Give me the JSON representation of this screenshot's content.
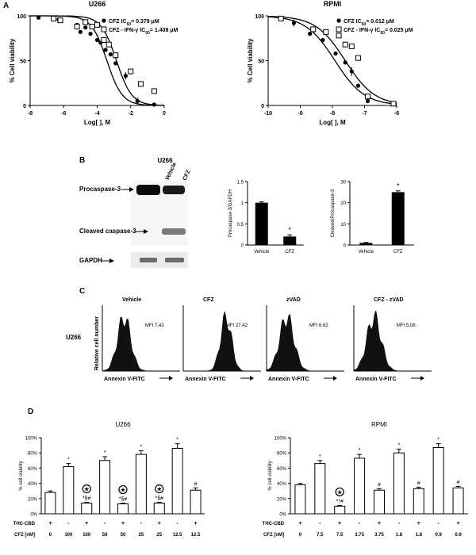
{
  "panels": {
    "a": "A",
    "b": "B",
    "c": "C",
    "d": "D"
  },
  "chart_data": [
    {
      "id": "a-u266",
      "type": "scatter",
      "title": "U266",
      "xlabel": "Log[ ], M",
      "ylabel": "% Cell viability",
      "xlim": [
        -8,
        0
      ],
      "ylim": [
        0,
        100
      ],
      "xticks": [
        "-8",
        "-6",
        "-4",
        "-2",
        "0"
      ],
      "yticks": [
        "0",
        "50",
        "100"
      ],
      "legend": [
        {
          "label": "CFZ IC50= 0.379 μM",
          "text": "CFZ IC",
          "sub": "50",
          "rest": "= 0.379 μM",
          "marker": "filled-circle"
        },
        {
          "label": "CFZ - IFN-γ IC50= 1.408 μM",
          "text": "CFZ - IFN-γ IC",
          "sub": "50",
          "rest": "= 1.408 μM",
          "marker": "open-square"
        }
      ],
      "series": [
        {
          "name": "CFZ",
          "marker": "filled-circle",
          "ic50_log": -3.42,
          "x": [
            -7.5,
            -6.3,
            -5.2,
            -5.0,
            -4.7,
            -4.4,
            -4.0,
            -3.8,
            -3.5,
            -3.2,
            -2.9,
            -2.3,
            -1.6,
            -0.6
          ],
          "y": [
            98,
            96,
            90,
            82,
            87,
            80,
            73,
            70,
            62,
            57,
            47,
            33,
            5,
            1
          ],
          "err": [
            0,
            0,
            0,
            0,
            0,
            0,
            0,
            0,
            0,
            0,
            0,
            4,
            4,
            0
          ]
        },
        {
          "name": "CFZ - IFN-γ",
          "marker": "open-square",
          "ic50_log": -2.85,
          "x": [
            -6.6,
            -6.2,
            -5.2,
            -4.7,
            -4.3,
            -4.0,
            -3.6,
            -3.3,
            -2.9,
            -2.0,
            -1.4,
            -0.6
          ],
          "y": [
            97,
            95,
            88,
            93,
            88,
            90,
            73,
            68,
            56,
            38,
            24,
            16
          ],
          "err": [
            0,
            0,
            0,
            0,
            0,
            0,
            0,
            0,
            0,
            0,
            0,
            0
          ]
        }
      ]
    },
    {
      "id": "a-rpmi",
      "type": "scatter",
      "title": "RPMI",
      "xlabel": "Log[ ], M",
      "ylabel": "% Cell viability",
      "xlim": [
        -10,
        -6
      ],
      "ylim": [
        0,
        100
      ],
      "xticks": [
        "-10",
        "-9",
        "-8",
        "-7",
        "-6"
      ],
      "yticks": [
        "0",
        "50",
        "100"
      ],
      "legend": [
        {
          "label": "CFZ IC50= 0.012 μM",
          "text": "CFZ IC",
          "sub": "50",
          "rest": "= 0.012 μM",
          "marker": "filled-circle"
        },
        {
          "label": "CFZ - IFN-γ IC50= 0.025 μM",
          "text": "CFZ - IFN-γ IC",
          "sub": "50",
          "rest": "= 0.025 μM",
          "marker": "open-square"
        }
      ],
      "series": [
        {
          "name": "CFZ",
          "marker": "filled-circle",
          "ic50_log": -7.92,
          "x": [
            -9.6,
            -9.2,
            -8.7,
            -8.3,
            -7.9,
            -7.6,
            -7.4,
            -7.2,
            -6.9,
            -6.1
          ],
          "y": [
            97,
            92,
            80,
            73,
            58,
            48,
            38,
            22,
            5,
            2
          ],
          "err": [
            0,
            4,
            0,
            0,
            0,
            0,
            5,
            0,
            0,
            0
          ]
        },
        {
          "name": "CFZ - IFN-γ",
          "marker": "open-square",
          "ic50_log": -7.6,
          "x": [
            -9.6,
            -8.6,
            -8.2,
            -7.8,
            -7.6,
            -7.4,
            -7.2,
            -6.9,
            -6.1
          ],
          "y": [
            97,
            85,
            82,
            78,
            68,
            66,
            53,
            10,
            2
          ],
          "err": [
            0,
            0,
            0,
            0,
            0,
            0,
            0,
            0,
            0
          ]
        }
      ]
    },
    {
      "id": "b-procaspase",
      "type": "bar",
      "ylabel": "Procaspase-3/GAPDH",
      "categories": [
        "Vehicle",
        "CFZ"
      ],
      "values": [
        1.0,
        0.2
      ],
      "err": [
        0.02,
        0.04
      ],
      "ylim": [
        0,
        1.5
      ],
      "yticks": [
        "0",
        "0.5",
        "1",
        "1.5"
      ],
      "annotations": [
        "",
        "*"
      ]
    },
    {
      "id": "b-cleaved",
      "type": "bar",
      "ylabel": "Cleaved/Procaspase-3",
      "categories": [
        "Vehicle",
        "CFZ"
      ],
      "values": [
        1,
        25
      ],
      "err": [
        0.2,
        0.6
      ],
      "ylim": [
        0,
        30
      ],
      "yticks": [
        "0",
        "10",
        "20",
        "30"
      ],
      "annotations": [
        "",
        "*"
      ]
    },
    {
      "id": "d-u266",
      "type": "bar",
      "title": "U266",
      "ylabel": "% cell viability",
      "ylim": [
        0,
        100
      ],
      "yticks": [
        "0%",
        "20%",
        "40%",
        "60%",
        "80%",
        "100%"
      ],
      "values": [
        28,
        62,
        14,
        70,
        13,
        78,
        14,
        86,
        31
      ],
      "err": [
        2,
        4,
        1,
        5,
        1,
        5,
        1,
        6,
        3
      ],
      "annotations": [
        "",
        "*",
        "*§#",
        "*",
        "*§#",
        "*",
        "*§#",
        "*",
        "#"
      ],
      "star_marks": [
        false,
        false,
        true,
        false,
        true,
        false,
        true,
        false,
        false
      ],
      "row1_label": "THC-CBD",
      "row2_label": "CFZ [nM]",
      "row1": [
        "+",
        "-",
        "+",
        "-",
        "+",
        "-",
        "+",
        "-",
        "+"
      ],
      "row2": [
        "0",
        "100",
        "100",
        "50",
        "50",
        "25",
        "25",
        "12.5",
        "12.5"
      ]
    },
    {
      "id": "d-rpmi",
      "type": "bar",
      "title": "RPMI",
      "ylabel": "% cell viability",
      "ylim": [
        0,
        100
      ],
      "yticks": [
        "0%",
        "20%",
        "40%",
        "60%",
        "80%",
        "100%"
      ],
      "values": [
        38,
        66,
        10,
        73,
        31,
        80,
        33,
        87,
        34
      ],
      "err": [
        2,
        4,
        1,
        5,
        2,
        5,
        2,
        5,
        2
      ],
      "annotations": [
        "",
        "*",
        "**#",
        "*",
        "#",
        "*",
        "#",
        "*",
        "#"
      ],
      "star_marks": [
        false,
        false,
        true,
        false,
        false,
        false,
        false,
        false,
        false
      ],
      "row1_label": "THC-CBD",
      "row2_label": "CFZ [nM]",
      "row1": [
        "+",
        "-",
        "+",
        "-",
        "+",
        "-",
        "+",
        "-",
        "+"
      ],
      "row2": [
        "0",
        "7.5",
        "7.5",
        "3.75",
        "3.75",
        "1.8",
        "1.8",
        "0.9",
        "0.9"
      ]
    }
  ],
  "blot": {
    "title": "U266",
    "lanes": [
      "Vehicle",
      "CFZ"
    ],
    "labels": [
      "Procaspase-3",
      "Cleaved caspase-3",
      "GAPDH"
    ]
  },
  "flow": {
    "row_label": "U266",
    "ylabel": "Relative cell number",
    "xlabel": "Annexin V-FITC",
    "panels": [
      {
        "title": "Vehicle",
        "mfi": "MFI 7.43"
      },
      {
        "title": "CFZ",
        "mfi": "MFI 27.42"
      },
      {
        "title": "zVAD",
        "mfi": "MFI 6.62"
      },
      {
        "title": "CFZ - zVAD",
        "mfi": "MFI 5.08"
      }
    ]
  }
}
